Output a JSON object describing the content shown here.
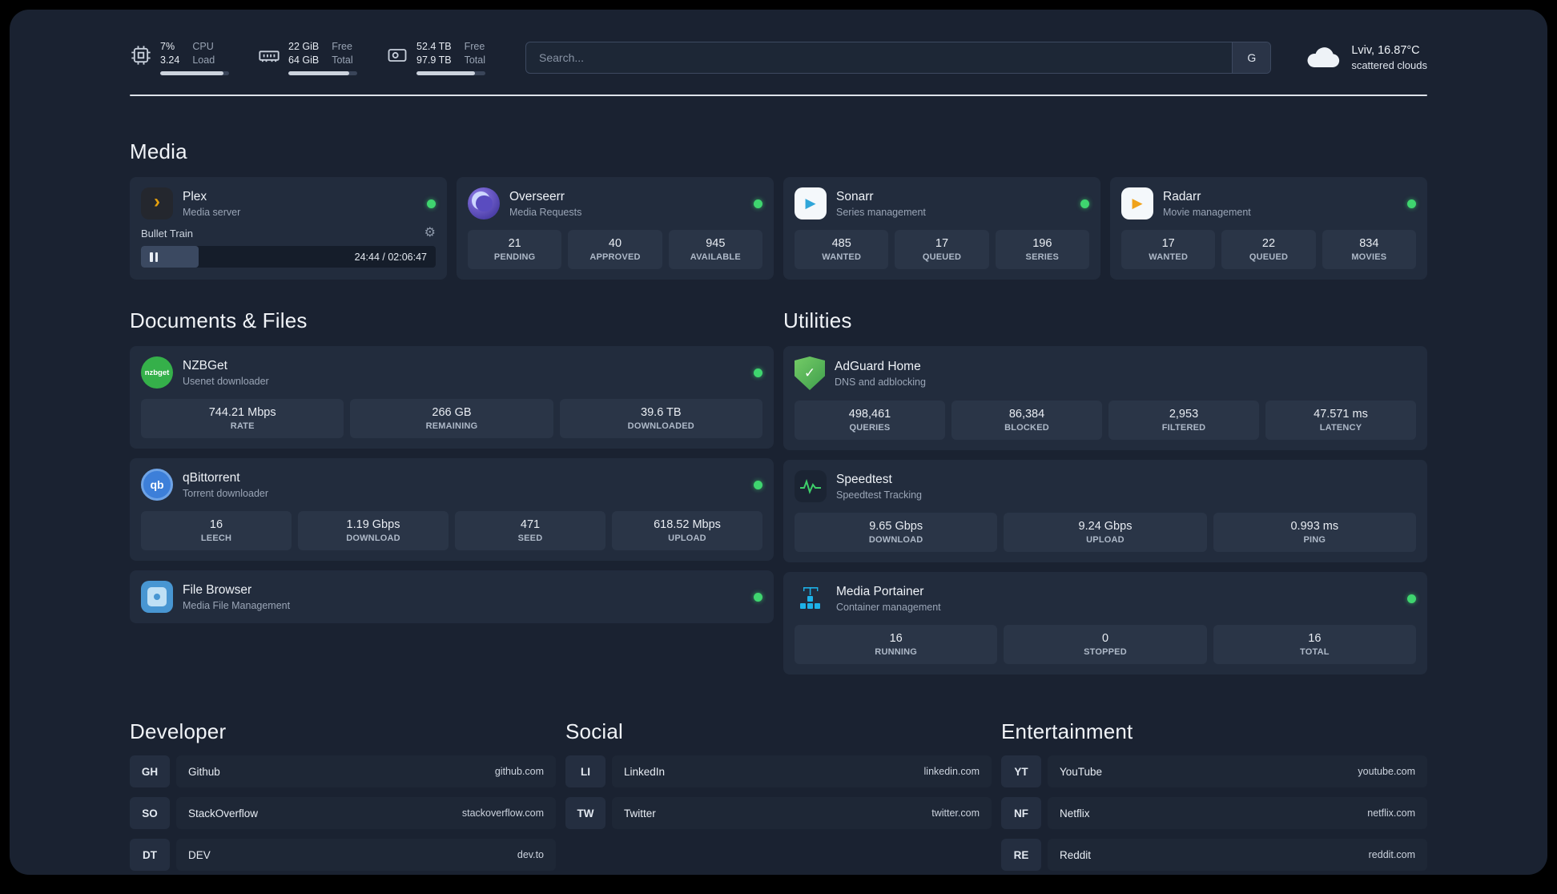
{
  "colors": {
    "background": "#1a2231",
    "card": "#222c3d",
    "tile": "#2a3547",
    "status_online": "#3fd56f",
    "plex_amber": "#e5a00d",
    "divider": "#dde2e9"
  },
  "header": {
    "metrics": [
      {
        "name": "cpu",
        "values": [
          "7%",
          "3.24"
        ],
        "labels": [
          "CPU",
          "Load"
        ],
        "fill": 92
      },
      {
        "name": "memory",
        "values": [
          "22 GiB",
          "64 GiB"
        ],
        "labels": [
          "Free",
          "Total"
        ],
        "fill": 88
      },
      {
        "name": "disk",
        "values": [
          "52.4 TB",
          "97.9 TB"
        ],
        "labels": [
          "Free",
          "Total"
        ],
        "fill": 85
      }
    ],
    "search": {
      "placeholder": "Search...",
      "button": "G"
    },
    "weather": {
      "location": "Lviv, 16.87°C",
      "condition": "scattered clouds"
    }
  },
  "icons": {
    "plex_glyph": "›",
    "sonarr_glyph": "▶",
    "radarr_glyph": "▶",
    "nzbget_text": "nzbget",
    "qbittorrent_text": "qb",
    "adguard_check": "✓",
    "gear": "⚙"
  },
  "sections": {
    "media": {
      "title": "Media",
      "plex": {
        "name": "Plex",
        "subtitle": "Media server",
        "online": true,
        "player": {
          "track": "Bullet Train",
          "time": "24:44 / 02:06:47",
          "progress": 19.5
        }
      },
      "overseerr": {
        "name": "Overseerr",
        "subtitle": "Media Requests",
        "online": true,
        "stats": [
          {
            "value": "21",
            "label": "PENDING"
          },
          {
            "value": "40",
            "label": "APPROVED"
          },
          {
            "value": "945",
            "label": "AVAILABLE"
          }
        ]
      },
      "sonarr": {
        "name": "Sonarr",
        "subtitle": "Series management",
        "online": true,
        "stats": [
          {
            "value": "485",
            "label": "WANTED"
          },
          {
            "value": "17",
            "label": "QUEUED"
          },
          {
            "value": "196",
            "label": "SERIES"
          }
        ]
      },
      "radarr": {
        "name": "Radarr",
        "subtitle": "Movie management",
        "online": true,
        "stats": [
          {
            "value": "17",
            "label": "WANTED"
          },
          {
            "value": "22",
            "label": "QUEUED"
          },
          {
            "value": "834",
            "label": "MOVIES"
          }
        ]
      }
    },
    "documents": {
      "title": "Documents & Files",
      "nzbget": {
        "name": "NZBGet",
        "subtitle": "Usenet downloader",
        "online": true,
        "stats": [
          {
            "value": "744.21 Mbps",
            "label": "RATE"
          },
          {
            "value": "266 GB",
            "label": "REMAINING"
          },
          {
            "value": "39.6 TB",
            "label": "DOWNLOADED"
          }
        ]
      },
      "qbittorrent": {
        "name": "qBittorrent",
        "subtitle": "Torrent downloader",
        "online": true,
        "stats": [
          {
            "value": "16",
            "label": "LEECH"
          },
          {
            "value": "1.19 Gbps",
            "label": "DOWNLOAD"
          },
          {
            "value": "471",
            "label": "SEED"
          },
          {
            "value": "618.52 Mbps",
            "label": "UPLOAD"
          }
        ]
      },
      "filebrowser": {
        "name": "File Browser",
        "subtitle": "Media File Management",
        "online": true
      }
    },
    "utilities": {
      "title": "Utilities",
      "adguard": {
        "name": "AdGuard Home",
        "subtitle": "DNS and adblocking",
        "stats": [
          {
            "value": "498,461",
            "label": "QUERIES"
          },
          {
            "value": "86,384",
            "label": "BLOCKED"
          },
          {
            "value": "2,953",
            "label": "FILTERED"
          },
          {
            "value": "47.571 ms",
            "label": "LATENCY"
          }
        ]
      },
      "speedtest": {
        "name": "Speedtest",
        "subtitle": "Speedtest Tracking",
        "stats": [
          {
            "value": "9.65 Gbps",
            "label": "DOWNLOAD"
          },
          {
            "value": "9.24 Gbps",
            "label": "UPLOAD"
          },
          {
            "value": "0.993 ms",
            "label": "PING"
          }
        ]
      },
      "portainer": {
        "name": "Media Portainer",
        "subtitle": "Container management",
        "online": true,
        "stats": [
          {
            "value": "16",
            "label": "RUNNING"
          },
          {
            "value": "0",
            "label": "STOPPED"
          },
          {
            "value": "16",
            "label": "TOTAL"
          }
        ]
      }
    },
    "links": [
      {
        "title": "Developer",
        "items": [
          {
            "abbr": "GH",
            "name": "Github",
            "url": "github.com"
          },
          {
            "abbr": "SO",
            "name": "StackOverflow",
            "url": "stackoverflow.com"
          },
          {
            "abbr": "DT",
            "name": "DEV",
            "url": "dev.to"
          }
        ]
      },
      {
        "title": "Social",
        "items": [
          {
            "abbr": "LI",
            "name": "LinkedIn",
            "url": "linkedin.com"
          },
          {
            "abbr": "TW",
            "name": "Twitter",
            "url": "twitter.com"
          }
        ]
      },
      {
        "title": "Entertainment",
        "items": [
          {
            "abbr": "YT",
            "name": "YouTube",
            "url": "youtube.com"
          },
          {
            "abbr": "NF",
            "name": "Netflix",
            "url": "netflix.com"
          },
          {
            "abbr": "RE",
            "name": "Reddit",
            "url": "reddit.com"
          }
        ]
      }
    ]
  }
}
